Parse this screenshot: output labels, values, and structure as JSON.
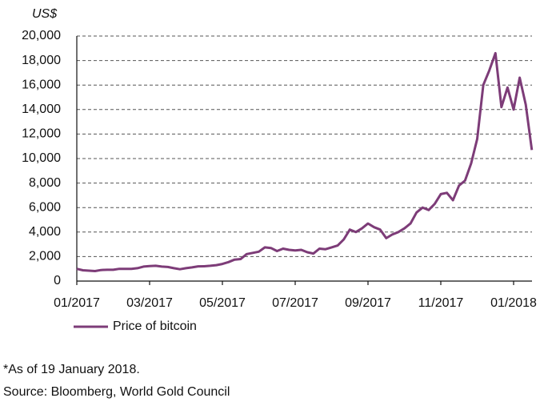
{
  "chart_data": {
    "type": "line",
    "y_axis_label": "US$",
    "categories": [
      "01/2017",
      null,
      null,
      null,
      null,
      null,
      null,
      null,
      null,
      null,
      null,
      null,
      "03/2017",
      null,
      null,
      null,
      null,
      null,
      null,
      null,
      null,
      null,
      null,
      null,
      "05/2017",
      null,
      null,
      null,
      null,
      null,
      null,
      null,
      null,
      null,
      null,
      null,
      "07/2017",
      null,
      null,
      null,
      null,
      null,
      null,
      null,
      null,
      null,
      null,
      null,
      "09/2017",
      null,
      null,
      null,
      null,
      null,
      null,
      null,
      null,
      null,
      null,
      null,
      "11/2017",
      null,
      null,
      null,
      null,
      null,
      null,
      null,
      null,
      null,
      null,
      null,
      "01/2018",
      null,
      null,
      null
    ],
    "series": [
      {
        "name": "Price of bitcoin",
        "color": "#7d3c78",
        "values": [
          1000,
          880,
          850,
          820,
          900,
          920,
          920,
          1000,
          1000,
          1000,
          1050,
          1180,
          1220,
          1250,
          1180,
          1150,
          1050,
          970,
          1050,
          1120,
          1200,
          1210,
          1250,
          1300,
          1400,
          1550,
          1750,
          1800,
          2200,
          2300,
          2400,
          2750,
          2700,
          2450,
          2650,
          2550,
          2500,
          2550,
          2350,
          2250,
          2650,
          2600,
          2750,
          2900,
          3400,
          4200,
          4000,
          4300,
          4700,
          4400,
          4200,
          3500,
          3800,
          4000,
          4300,
          4700,
          5600,
          6000,
          5800,
          6300,
          7100,
          7200,
          6600,
          7800,
          8200,
          9600,
          11600,
          16000,
          17200,
          18600,
          14200,
          15800,
          14000,
          16600,
          14400,
          10700
        ]
      }
    ],
    "ylim": [
      0,
      20000
    ],
    "yticks": [
      0,
      {
        "value": 2000,
        "label": "2,000"
      },
      {
        "value": 4000,
        "label": "4,000"
      },
      {
        "value": 6000,
        "label": "6,000"
      },
      {
        "value": 8000,
        "label": "8,000"
      },
      {
        "value": 10000,
        "label": "10,000"
      },
      {
        "value": 12000,
        "label": "12,000"
      },
      {
        "value": 14000,
        "label": "14,000"
      },
      {
        "value": 16000,
        "label": "16,000"
      },
      {
        "value": 18000,
        "label": "18,000"
      },
      {
        "value": 20000,
        "label": "20,000"
      }
    ],
    "grid": true,
    "legend": "bottom-left",
    "footnote": "*As of 19 January 2018.",
    "source": "Source: Bloomberg, World Gold Council"
  }
}
